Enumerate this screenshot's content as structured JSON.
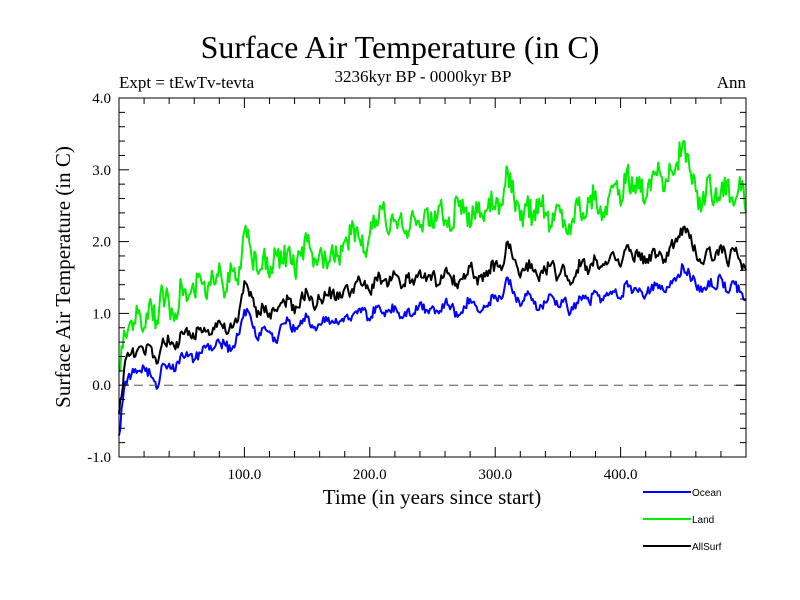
{
  "chart_data": {
    "type": "line",
    "title": "Surface Air Temperature (in C)",
    "subtitle": "3236kyr BP - 0000kyr BP",
    "left_annotation": "Expt = tEwTv-tevta",
    "right_annotation": "Ann",
    "xlabel": "Time (in years since start)",
    "ylabel": "Surface Air Temperature (in C)",
    "xlim": [
      0,
      500
    ],
    "ylim": [
      -1.0,
      4.0
    ],
    "x_tick_labels": [
      "100.0",
      "200.0",
      "300.0",
      "400.0"
    ],
    "x_ticks": [
      100,
      200,
      300,
      400
    ],
    "y_tick_labels": [
      "-1.0",
      "0.0",
      "1.0",
      "2.0",
      "3.0",
      "4.0"
    ],
    "y_ticks": [
      -1.0,
      0.0,
      1.0,
      2.0,
      3.0,
      4.0
    ],
    "reference_line": {
      "y": 0.0,
      "style": "dashed"
    },
    "grid": false,
    "legend": {
      "placement": "bottom-right-outside"
    },
    "x": [
      0,
      5,
      10,
      15,
      20,
      25,
      30,
      35,
      40,
      45,
      50,
      55,
      60,
      65,
      70,
      75,
      80,
      85,
      90,
      95,
      100,
      105,
      110,
      115,
      120,
      125,
      130,
      135,
      140,
      145,
      150,
      155,
      160,
      165,
      170,
      175,
      180,
      185,
      190,
      195,
      200,
      205,
      210,
      215,
      220,
      225,
      230,
      235,
      240,
      245,
      250,
      255,
      260,
      265,
      270,
      275,
      280,
      285,
      290,
      295,
      300,
      305,
      310,
      315,
      320,
      325,
      330,
      335,
      340,
      345,
      350,
      355,
      360,
      365,
      370,
      375,
      380,
      385,
      390,
      395,
      400,
      405,
      410,
      415,
      420,
      425,
      430,
      435,
      440,
      445,
      450,
      455,
      460,
      465,
      470,
      475,
      480,
      485,
      490,
      495,
      500
    ],
    "series": [
      {
        "name": "Ocean",
        "color": "#0000ff",
        "values": [
          -0.7,
          0.05,
          0.15,
          0.2,
          0.25,
          0.15,
          -0.05,
          0.3,
          0.3,
          0.2,
          0.45,
          0.4,
          0.35,
          0.45,
          0.55,
          0.5,
          0.6,
          0.55,
          0.5,
          0.7,
          1.05,
          0.95,
          0.65,
          0.8,
          0.75,
          0.6,
          0.85,
          0.9,
          0.75,
          0.9,
          0.95,
          0.8,
          0.85,
          0.95,
          0.9,
          0.85,
          0.95,
          0.9,
          1.0,
          1.05,
          0.9,
          1.1,
          1.0,
          1.05,
          1.1,
          0.95,
          1.05,
          1.0,
          1.15,
          1.05,
          1.1,
          1.0,
          1.15,
          1.1,
          0.95,
          1.1,
          1.2,
          1.1,
          1.05,
          1.15,
          1.25,
          1.2,
          1.5,
          1.3,
          1.1,
          1.25,
          1.2,
          1.05,
          1.15,
          1.25,
          1.1,
          1.2,
          1.0,
          1.15,
          1.25,
          1.15,
          1.3,
          1.2,
          1.25,
          1.3,
          1.2,
          1.45,
          1.3,
          1.35,
          1.25,
          1.4,
          1.35,
          1.3,
          1.45,
          1.5,
          1.65,
          1.55,
          1.4,
          1.3,
          1.45,
          1.35,
          1.5,
          1.3,
          1.45,
          1.3,
          1.2
        ]
      },
      {
        "name": "Land",
        "color": "#00ee00",
        "values": [
          0.2,
          0.7,
          0.9,
          1.0,
          0.8,
          1.2,
          0.9,
          1.3,
          1.1,
          1.0,
          1.4,
          1.2,
          1.3,
          1.5,
          1.2,
          1.5,
          1.7,
          1.3,
          1.6,
          1.4,
          2.15,
          1.9,
          1.6,
          1.8,
          1.5,
          1.85,
          1.7,
          1.9,
          1.6,
          1.8,
          2.0,
          1.65,
          1.85,
          1.75,
          1.95,
          1.8,
          2.0,
          2.1,
          2.2,
          1.85,
          2.1,
          2.3,
          2.45,
          2.1,
          2.3,
          2.4,
          2.05,
          2.35,
          2.2,
          2.45,
          2.2,
          2.5,
          2.3,
          2.15,
          2.6,
          2.4,
          2.2,
          2.55,
          2.35,
          2.6,
          2.45,
          2.5,
          3.0,
          2.6,
          2.3,
          2.5,
          2.35,
          2.6,
          2.4,
          2.2,
          2.5,
          2.3,
          2.1,
          2.6,
          2.4,
          2.55,
          2.7,
          2.3,
          2.6,
          2.8,
          2.5,
          3.0,
          2.7,
          2.9,
          2.6,
          2.9,
          3.1,
          2.7,
          3.0,
          3.1,
          3.4,
          3.0,
          2.7,
          2.5,
          2.9,
          2.6,
          2.7,
          2.85,
          2.5,
          2.9,
          2.4
        ]
      },
      {
        "name": "AllSurf",
        "color": "#000000",
        "values": [
          -0.4,
          0.35,
          0.45,
          0.5,
          0.45,
          0.55,
          0.3,
          0.65,
          0.6,
          0.5,
          0.75,
          0.7,
          0.65,
          0.8,
          0.75,
          0.8,
          0.9,
          0.75,
          0.8,
          0.9,
          1.45,
          1.3,
          0.95,
          1.1,
          1.0,
          1.05,
          1.15,
          1.2,
          1.0,
          1.2,
          1.3,
          1.1,
          1.2,
          1.25,
          1.3,
          1.2,
          1.35,
          1.3,
          1.45,
          1.4,
          1.3,
          1.5,
          1.45,
          1.4,
          1.55,
          1.35,
          1.5,
          1.4,
          1.6,
          1.45,
          1.55,
          1.4,
          1.6,
          1.5,
          1.35,
          1.55,
          1.65,
          1.5,
          1.45,
          1.6,
          1.7,
          1.6,
          2.0,
          1.75,
          1.5,
          1.7,
          1.6,
          1.45,
          1.6,
          1.7,
          1.5,
          1.65,
          1.4,
          1.6,
          1.75,
          1.6,
          1.75,
          1.65,
          1.7,
          1.8,
          1.65,
          1.95,
          1.75,
          1.85,
          1.7,
          1.85,
          1.8,
          1.75,
          1.95,
          2.0,
          2.2,
          2.05,
          1.85,
          1.7,
          1.9,
          1.75,
          1.95,
          1.7,
          1.9,
          1.75,
          1.6
        ]
      }
    ]
  },
  "legend_items": [
    {
      "label": "Ocean",
      "color": "#0000ff"
    },
    {
      "label": "Land",
      "color": "#00ee00"
    },
    {
      "label": "AllSurf",
      "color": "#000000"
    }
  ]
}
